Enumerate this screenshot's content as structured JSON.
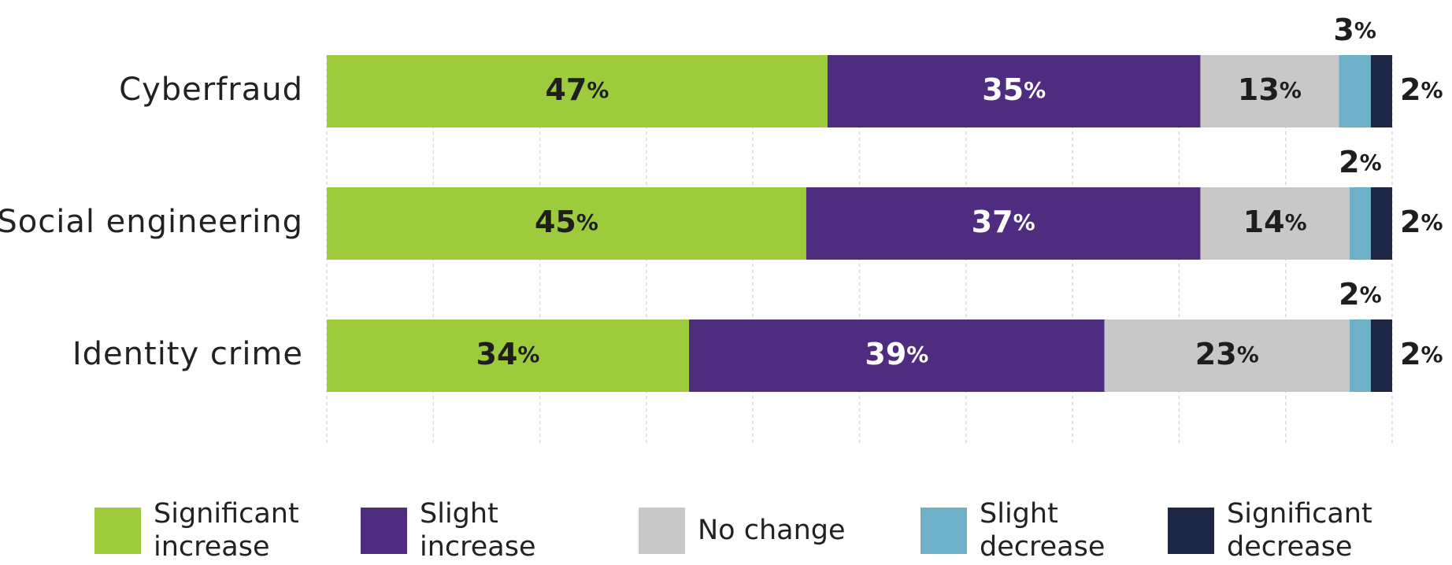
{
  "chart_data": {
    "type": "stacked-barh",
    "categories": [
      "Cyberfraud",
      "Social engineering",
      "Identity crime"
    ],
    "series": [
      {
        "name": "Significant increase",
        "color": "#9dcb3c",
        "values": [
          47,
          45,
          34
        ],
        "value_labels": [
          "47%",
          "45%",
          "34%"
        ]
      },
      {
        "name": "Slight increase",
        "color": "#4e2d80",
        "values": [
          35,
          37,
          39
        ],
        "value_labels": [
          "35%",
          "37%",
          "39%"
        ]
      },
      {
        "name": "No change",
        "color": "#c8c8c8",
        "values": [
          13,
          14,
          23
        ],
        "value_labels": [
          "13%",
          "14%",
          "23%"
        ]
      },
      {
        "name": "Slight decrease",
        "color": "#6db0c8",
        "values": [
          3,
          2,
          2
        ],
        "value_labels": [
          "3%",
          "2%",
          "2%"
        ]
      },
      {
        "name": "Significant decrease",
        "color": "#1e2645",
        "values": [
          2,
          2,
          2
        ],
        "value_labels": [
          "2%",
          "2%",
          "2%"
        ]
      }
    ],
    "xlim": [
      0,
      100
    ],
    "xticks": [
      0,
      10,
      20,
      30,
      40,
      50,
      60,
      70,
      80,
      90,
      100
    ],
    "grid": true
  }
}
